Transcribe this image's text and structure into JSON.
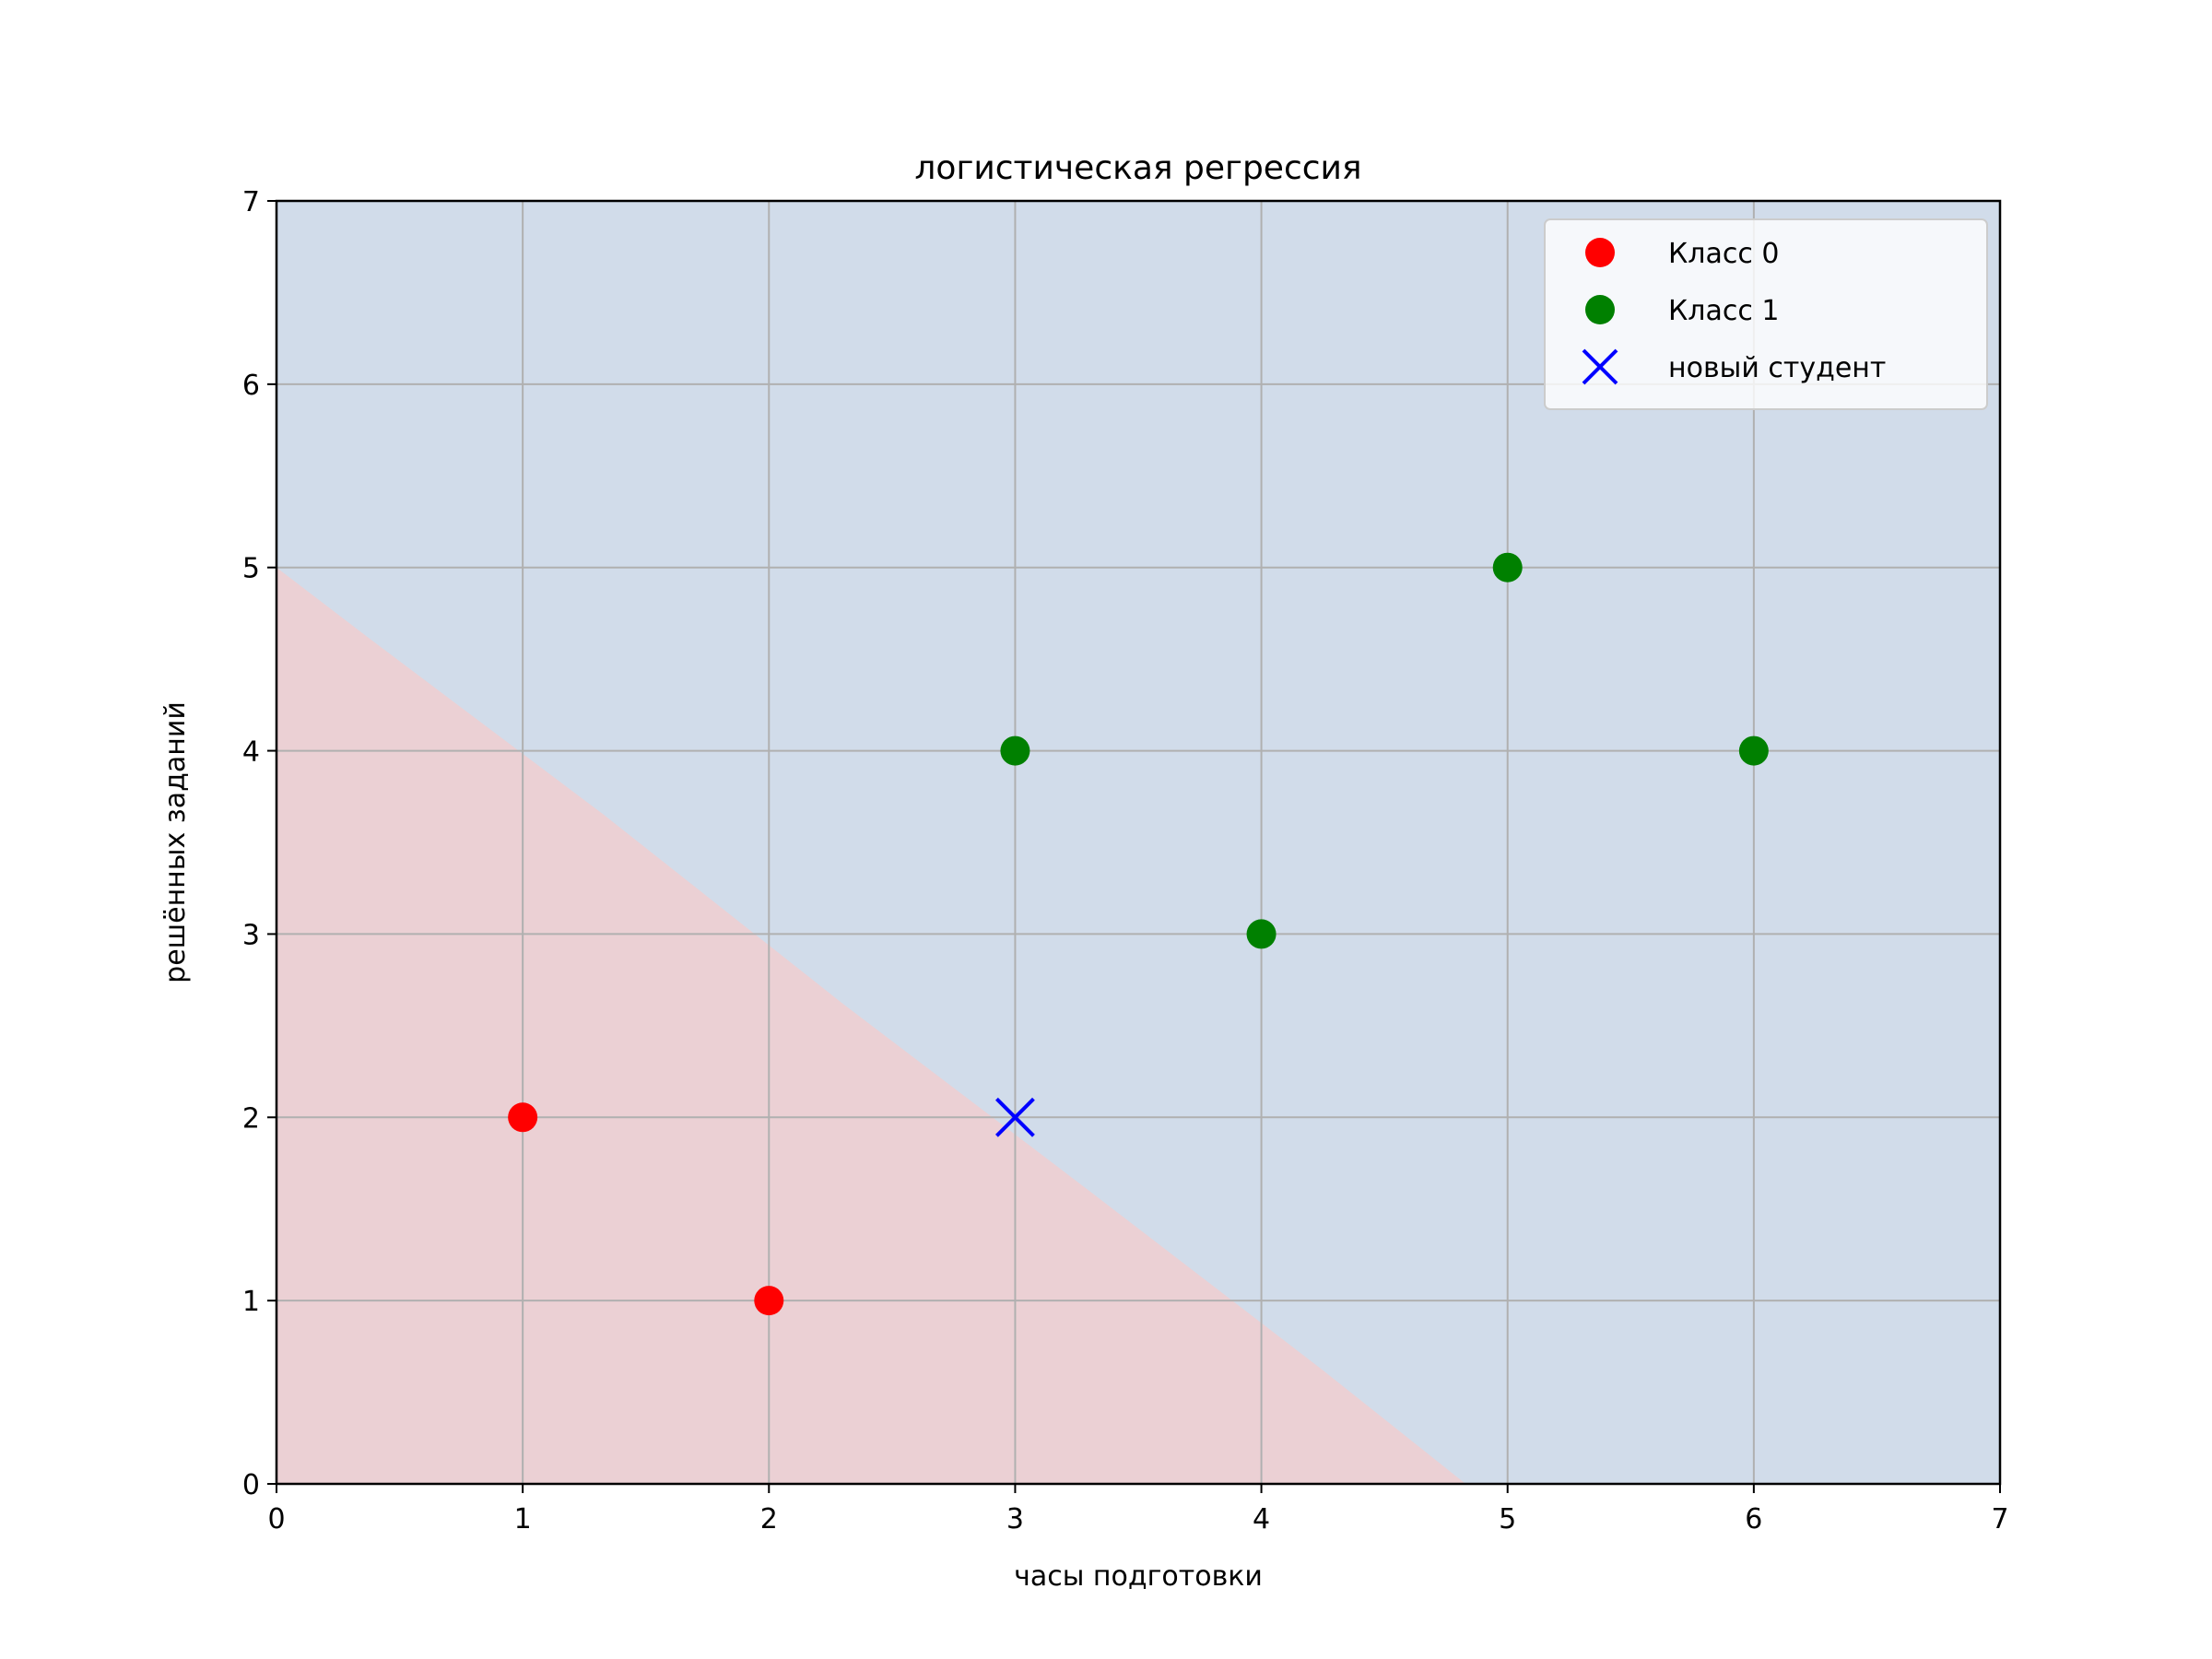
{
  "chart_data": {
    "type": "scatter",
    "title": "логистическая регрессия",
    "xlabel": "часы подготовки",
    "ylabel": "решённых заданий",
    "xlim": [
      0,
      7
    ],
    "ylim": [
      0,
      7
    ],
    "xticks": [
      "0",
      "1",
      "2",
      "3",
      "4",
      "5",
      "6",
      "7"
    ],
    "yticks": [
      "0",
      "1",
      "2",
      "3",
      "4",
      "5",
      "6",
      "7"
    ],
    "grid": true,
    "legend_position": "top-right",
    "decision_boundary": {
      "points": [
        [
          0,
          5
        ],
        [
          0.37,
          4.62
        ],
        [
          1.33,
          3.65
        ],
        [
          2.3,
          2.62
        ],
        [
          3.3,
          1.6
        ],
        [
          4.25,
          0.62
        ],
        [
          4.83,
          0
        ]
      ],
      "region_below_color": "#ebd0d4",
      "region_above_color": "#d1dcea"
    },
    "series": [
      {
        "name": "Класс 0",
        "marker": "circle",
        "color": "#ff0000",
        "points": [
          [
            1,
            2
          ],
          [
            2,
            1
          ]
        ]
      },
      {
        "name": "Класс 1",
        "marker": "circle",
        "color": "#008000",
        "points": [
          [
            3,
            4
          ],
          [
            4,
            3
          ],
          [
            5,
            5
          ],
          [
            6,
            4
          ]
        ]
      },
      {
        "name": "новый студент",
        "marker": "x",
        "color": "#0000ff",
        "points": [
          [
            3,
            2
          ]
        ]
      }
    ]
  }
}
